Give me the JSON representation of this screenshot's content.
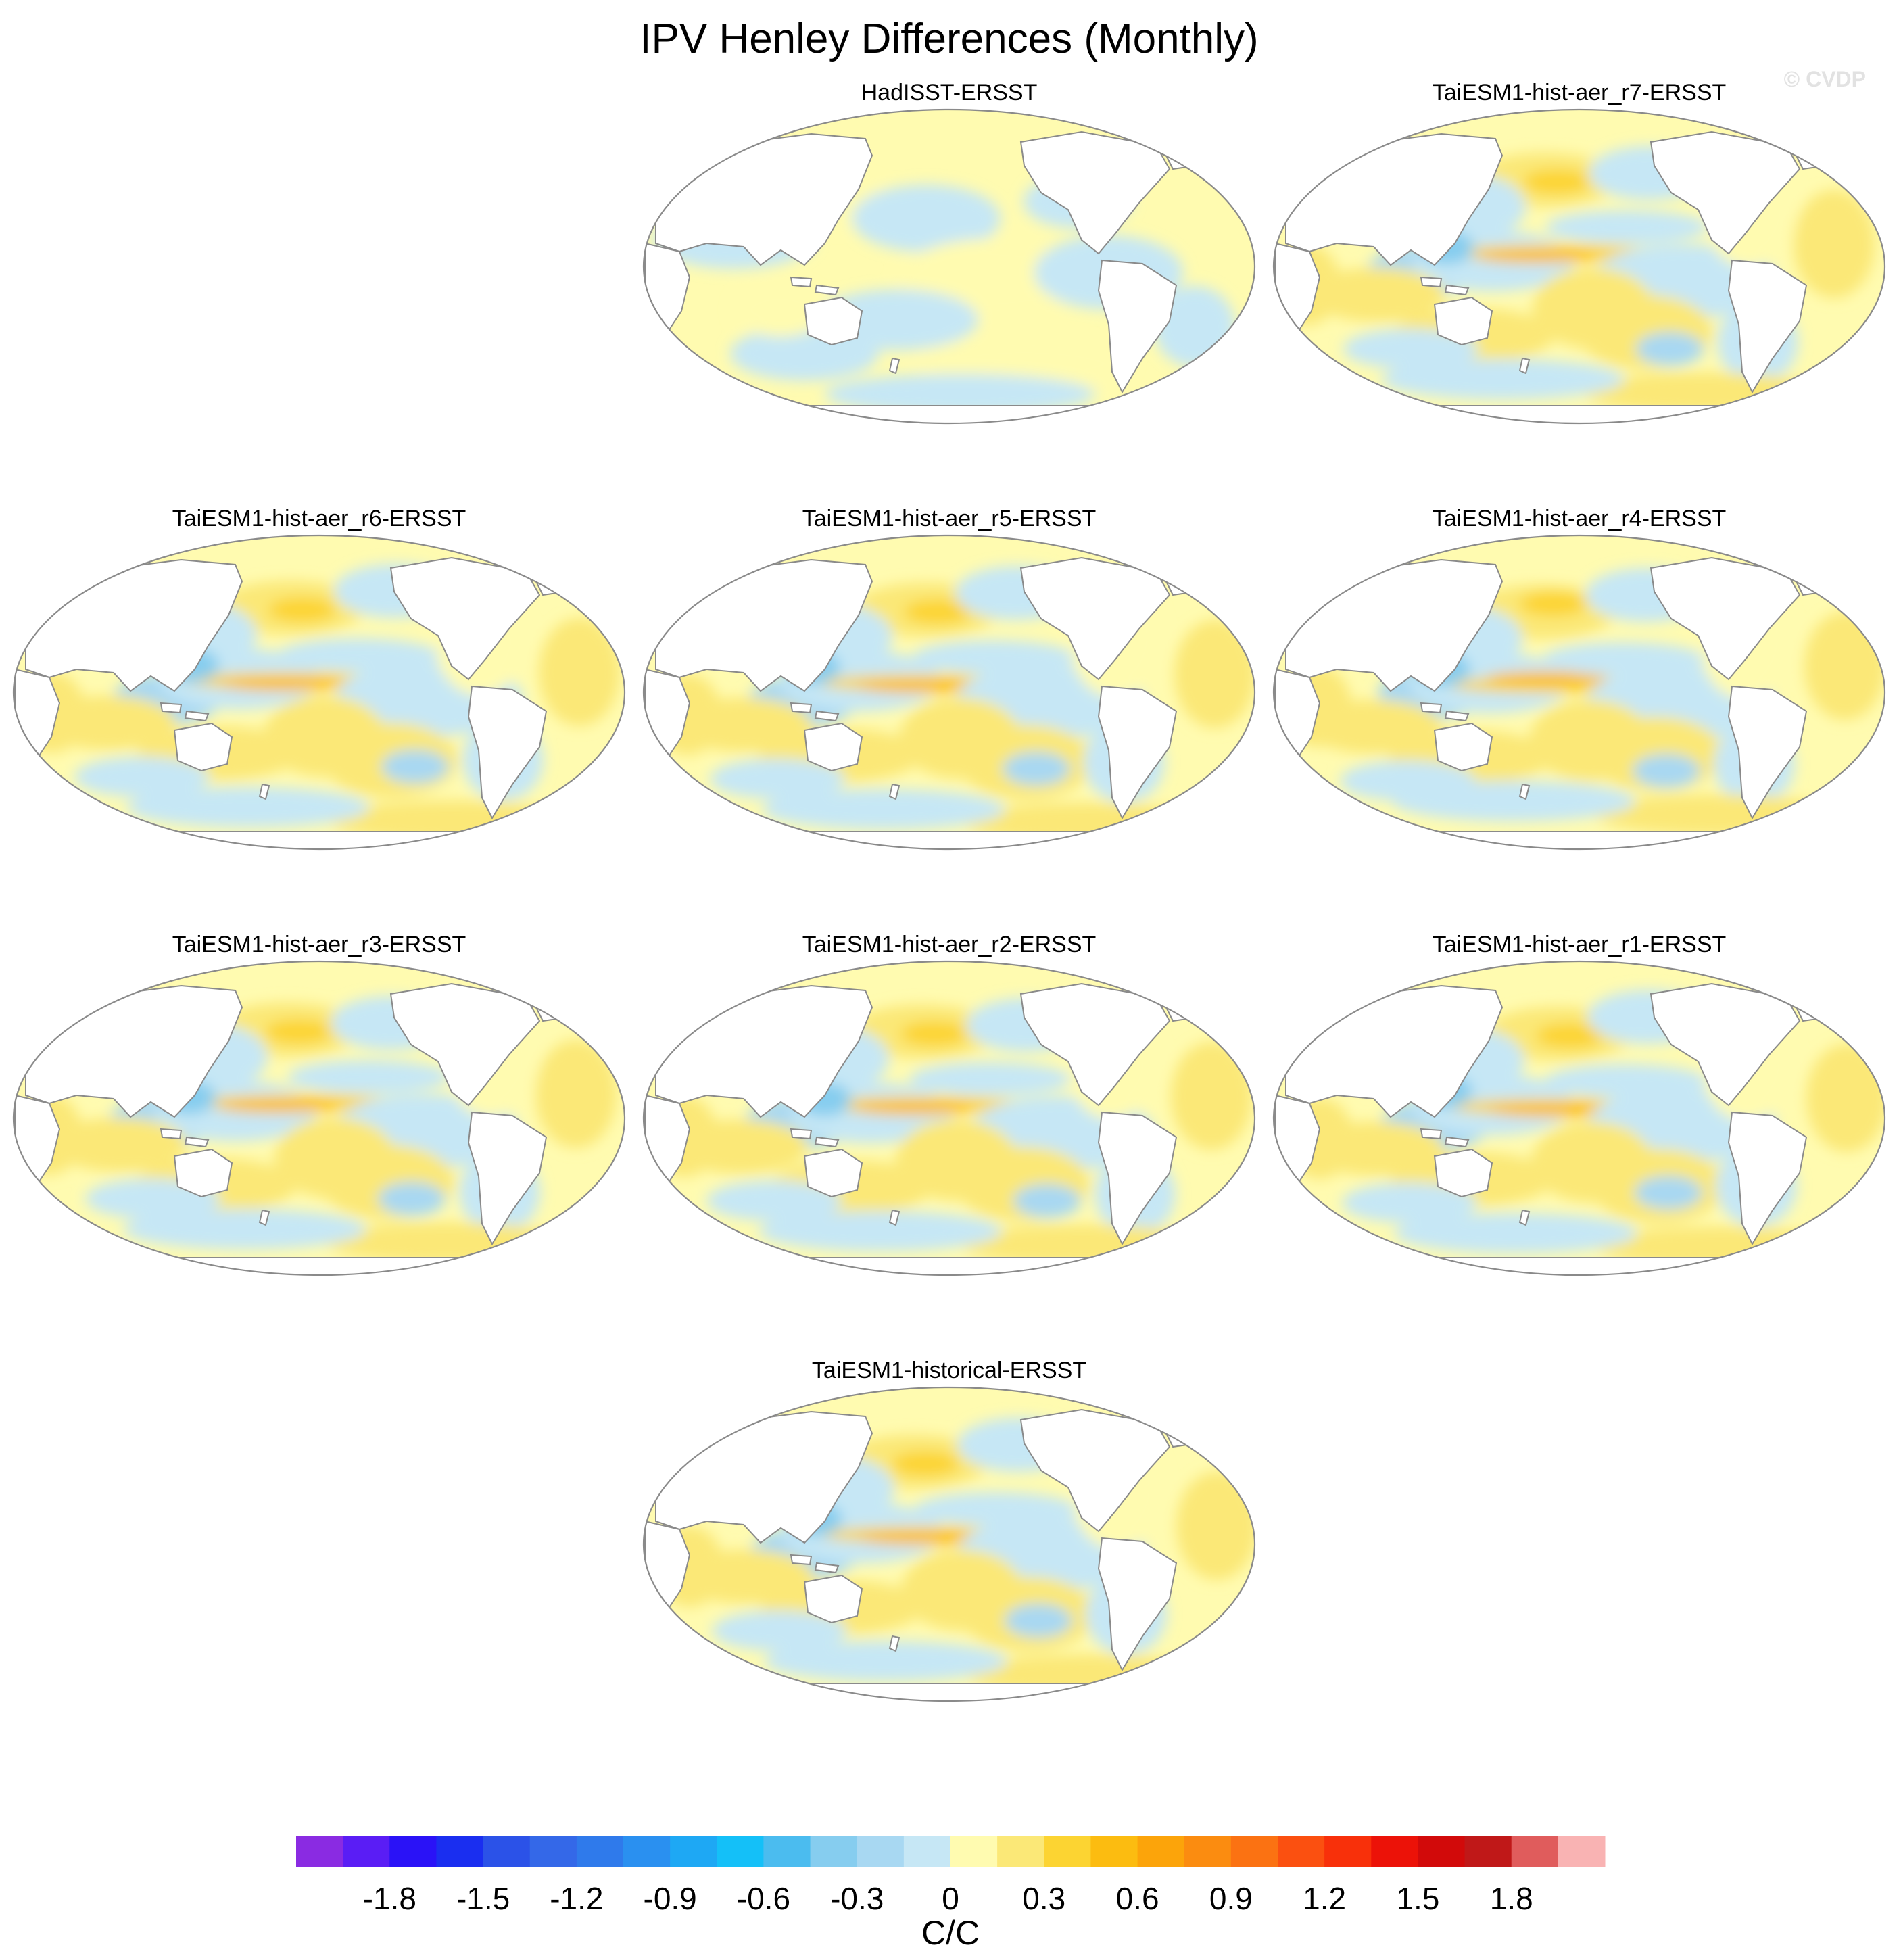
{
  "watermark": "© CVDP",
  "chart_data": {
    "type": "heatmap",
    "title": "IPV Henley Differences (Monthly)",
    "projection": "Robinson, centered on the Pacific",
    "panels": [
      {
        "title": "HadISST-ERSST",
        "pattern": "weak"
      },
      {
        "title": "TaiESM1-hist-aer_r7-ERSST",
        "pattern": "moderate"
      },
      {
        "title": "TaiESM1-hist-aer_r6-ERSST",
        "pattern": "moderate"
      },
      {
        "title": "TaiESM1-hist-aer_r5-ERSST",
        "pattern": "moderate"
      },
      {
        "title": "TaiESM1-hist-aer_r4-ERSST",
        "pattern": "moderate"
      },
      {
        "title": "TaiESM1-hist-aer_r3-ERSST",
        "pattern": "moderate"
      },
      {
        "title": "TaiESM1-hist-aer_r2-ERSST",
        "pattern": "moderate"
      },
      {
        "title": "TaiESM1-hist-aer_r1-ERSST",
        "pattern": "moderate"
      },
      {
        "title": "TaiESM1-historical-ERSST",
        "pattern": "moderate"
      }
    ],
    "colorbar": {
      "units": "C/C",
      "levels": [
        -2.0,
        -1.9,
        -1.8,
        -1.7,
        -1.6,
        -1.5,
        -1.4,
        -1.3,
        -1.2,
        -1.1,
        -1.0,
        -0.9,
        -0.8,
        -0.7,
        -0.6,
        -0.5,
        -0.4,
        -0.3,
        -0.2,
        -0.1,
        0.0,
        0.1,
        0.2,
        0.3,
        0.4,
        0.5,
        0.6,
        0.7,
        0.8,
        0.9,
        1.0,
        1.1,
        1.2,
        1.3,
        1.4,
        1.5,
        1.6,
        1.7,
        1.8,
        1.9,
        2.0
      ],
      "colors": [
        "#8a2be2",
        "#5a1df5",
        "#2a12f7",
        "#1a2ef0",
        "#2b52e8",
        "#3468e8",
        "#2f7aeb",
        "#2a90f0",
        "#1ea8f4",
        "#14c0f8",
        "#4bbcef",
        "#86cdef",
        "#a8d8f2",
        "#c6e7f5",
        "#fffbb0",
        "#fbe877",
        "#fcd432",
        "#fcbc10",
        "#fca40a",
        "#fb8c10",
        "#fb7212",
        "#fb5010",
        "#f8300a",
        "#ec1208",
        "#d20a0a",
        "#c01818",
        "#e05c5c",
        "#f9b3b3"
      ],
      "tick_labels": [
        "-1.8",
        "-1.5",
        "-1.2",
        "-0.9",
        "-0.6",
        "-0.3",
        "0",
        "0.3",
        "0.6",
        "0.9",
        "1.2",
        "1.5",
        "1.8"
      ]
    }
  }
}
